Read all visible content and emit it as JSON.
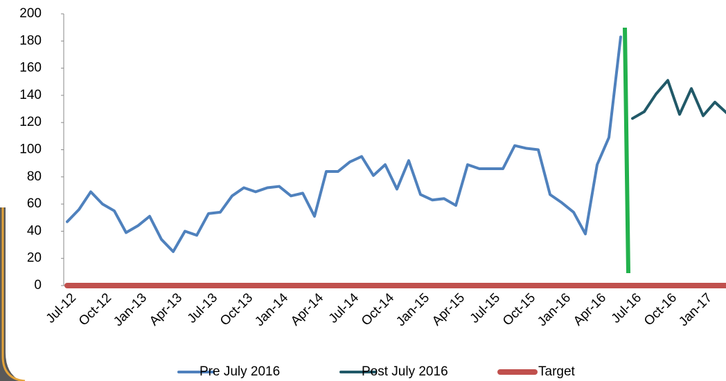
{
  "chart_data": {
    "type": "line",
    "categories": [
      "Jul-12",
      null,
      null,
      "Oct-12",
      null,
      null,
      "Jan-13",
      null,
      null,
      "Apr-13",
      null,
      null,
      "Jul-13",
      null,
      null,
      "Oct-13",
      null,
      null,
      "Jan-14",
      null,
      null,
      "Apr-14",
      null,
      null,
      "Jul-14",
      null,
      null,
      "Oct-14",
      null,
      null,
      "Jan-15",
      null,
      null,
      "Apr-15",
      null,
      null,
      "Jul-15",
      null,
      null,
      "Oct-15",
      null,
      null,
      "Jan-16",
      null,
      null,
      "Apr-16",
      null,
      null,
      "Jul-16",
      null,
      null,
      "Oct-16",
      null,
      null,
      "Jan-17",
      null,
      null
    ],
    "series": [
      {
        "name": "Pre July 2016",
        "color": "#4f81bd",
        "values": [
          47,
          56,
          69,
          60,
          55,
          39,
          44,
          51,
          34,
          25,
          40,
          37,
          53,
          54,
          66,
          72,
          69,
          72,
          73,
          66,
          68,
          51,
          84,
          84,
          91,
          95,
          81,
          89,
          71,
          92,
          67,
          63,
          64,
          59,
          89,
          86,
          86,
          86,
          103,
          101,
          100,
          67,
          61,
          54,
          38,
          89,
          109,
          183,
          null,
          null,
          null,
          null,
          null,
          null,
          null,
          null,
          null
        ]
      },
      {
        "name": "Post July 2016",
        "color": "#215968",
        "values": [
          null,
          null,
          null,
          null,
          null,
          null,
          null,
          null,
          null,
          null,
          null,
          null,
          null,
          null,
          null,
          null,
          null,
          null,
          null,
          null,
          null,
          null,
          null,
          null,
          null,
          null,
          null,
          null,
          null,
          null,
          null,
          null,
          null,
          null,
          null,
          null,
          null,
          null,
          null,
          null,
          null,
          null,
          null,
          null,
          null,
          null,
          null,
          null,
          123,
          128,
          141,
          151,
          126,
          145,
          125,
          135,
          127
        ]
      },
      {
        "name": "Target",
        "color": "#c0504d",
        "values": [
          0,
          0,
          0,
          0,
          0,
          0,
          0,
          0,
          0,
          0,
          0,
          0,
          0,
          0,
          0,
          0,
          0,
          0,
          0,
          0,
          0,
          0,
          0,
          0,
          0,
          0,
          0,
          0,
          0,
          0,
          0,
          0,
          0,
          0,
          0,
          0,
          0,
          0,
          0,
          0,
          0,
          0,
          0,
          0,
          0,
          0,
          0,
          0,
          0,
          0,
          0,
          0,
          0,
          0,
          0,
          0,
          0
        ]
      }
    ],
    "ylim": [
      0,
      200
    ],
    "yticks": [
      0,
      20,
      40,
      60,
      80,
      100,
      120,
      140,
      160,
      180,
      200
    ],
    "grid": false
  }
}
